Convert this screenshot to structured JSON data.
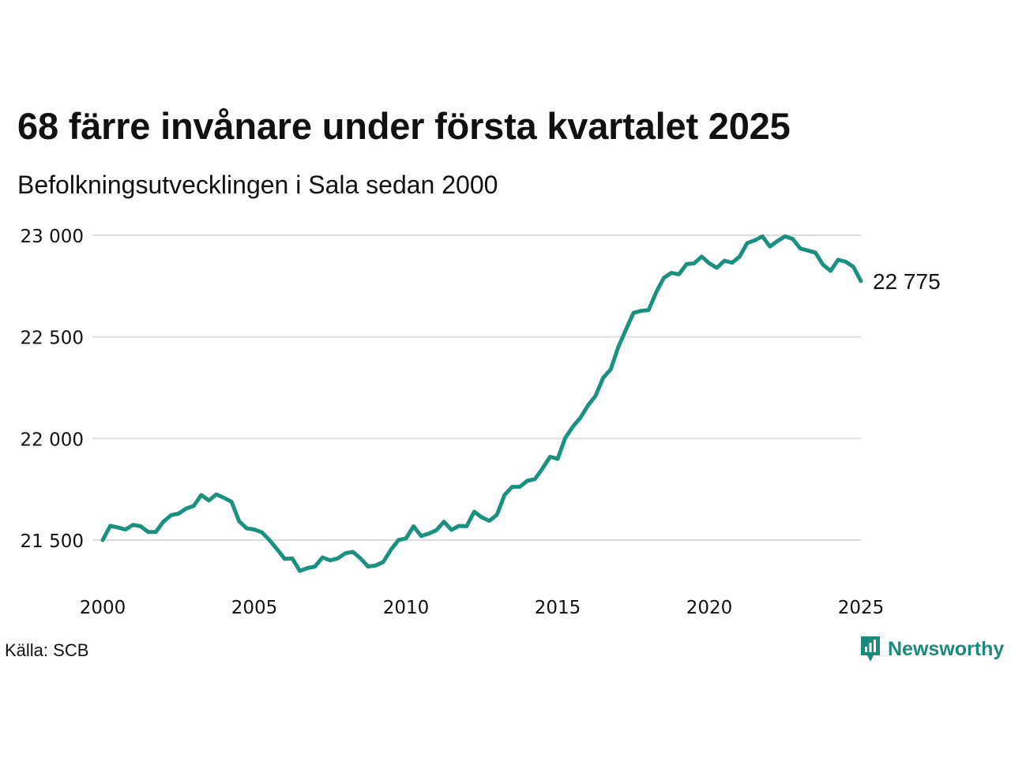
{
  "title": "68 färre invånare under första kvartalet 2025",
  "subtitle": "Befolkningsutvecklingen i Sala sedan 2000",
  "source": "Källa: SCB",
  "brand": {
    "name": "Newsworthy",
    "icon": "newsworthy-logo-icon",
    "color": "#1b8a7c"
  },
  "colors": {
    "line": "#1a9180",
    "grid": "#dddddd",
    "text": "#111111"
  },
  "chart_data": {
    "type": "line",
    "x_unit": "year",
    "xlim": [
      2000,
      2025
    ],
    "ylim": [
      21250,
      23060
    ],
    "xticks": [
      {
        "value": 2000,
        "label": "2000"
      },
      {
        "value": 2005,
        "label": "2005"
      },
      {
        "value": 2010,
        "label": "2010"
      },
      {
        "value": 2015,
        "label": "2015"
      },
      {
        "value": 2020,
        "label": "2020"
      },
      {
        "value": 2025,
        "label": "2025"
      }
    ],
    "yticks": [
      {
        "value": 21500,
        "label": "21 500"
      },
      {
        "value": 22000,
        "label": "22 000"
      },
      {
        "value": 22500,
        "label": "22 500"
      },
      {
        "value": 23000,
        "label": "23 000"
      }
    ],
    "grid": "horizontal",
    "end_label": "22 775",
    "series": [
      {
        "x": [
          2000.0,
          2000.25,
          2000.5,
          2000.75,
          2001.0,
          2001.25,
          2001.5,
          2001.75,
          2002.0,
          2002.25,
          2002.5,
          2002.75,
          2003.0,
          2003.25,
          2003.5,
          2003.75,
          2004.0,
          2004.25,
          2004.5,
          2004.75,
          2005.0,
          2005.25,
          2005.5,
          2005.75,
          2006.0,
          2006.25,
          2006.5,
          2006.75,
          2007.0,
          2007.25,
          2007.5,
          2007.75,
          2008.0,
          2008.25,
          2008.5,
          2008.75,
          2009.0,
          2009.25,
          2009.5,
          2009.75,
          2010.0,
          2010.25,
          2010.5,
          2010.75,
          2011.0,
          2011.25,
          2011.5,
          2011.75,
          2012.0,
          2012.25,
          2012.5,
          2012.75,
          2013.0,
          2013.25,
          2013.5,
          2013.75,
          2014.0,
          2014.25,
          2014.5,
          2014.75,
          2015.0,
          2015.25,
          2015.5,
          2015.75,
          2016.0,
          2016.25,
          2016.5,
          2016.75,
          2017.0,
          2017.25,
          2017.5,
          2017.75,
          2018.0,
          2018.25,
          2018.5,
          2018.75,
          2019.0,
          2019.25,
          2019.5,
          2019.75,
          2020.0,
          2020.25,
          2020.5,
          2020.75,
          2021.0,
          2021.25,
          2021.5,
          2021.75,
          2022.0,
          2022.25,
          2022.5,
          2022.75,
          2023.0,
          2023.25,
          2023.5,
          2023.75,
          2024.0,
          2024.25,
          2024.5,
          2024.75,
          2025.0
        ],
        "values": [
          21500,
          21570,
          21562,
          21552,
          21575,
          21568,
          21540,
          21540,
          21590,
          21622,
          21630,
          21655,
          21668,
          21722,
          21695,
          21725,
          21708,
          21688,
          21592,
          21558,
          21552,
          21538,
          21500,
          21455,
          21408,
          21410,
          21348,
          21362,
          21370,
          21415,
          21400,
          21410,
          21435,
          21442,
          21410,
          21370,
          21375,
          21392,
          21452,
          21500,
          21508,
          21568,
          21520,
          21532,
          21548,
          21590,
          21550,
          21570,
          21568,
          21640,
          21612,
          21595,
          21625,
          21722,
          21762,
          21762,
          21792,
          21800,
          21852,
          21910,
          21900,
          22002,
          22058,
          22102,
          22162,
          22210,
          22298,
          22340,
          22450,
          22535,
          22618,
          22628,
          22632,
          22720,
          22790,
          22815,
          22808,
          22858,
          22862,
          22895,
          22862,
          22840,
          22875,
          22865,
          22895,
          22962,
          22975,
          22995,
          22945,
          22972,
          22995,
          22982,
          22935,
          22925,
          22915,
          22855,
          22825,
          22880,
          22870,
          22845,
          22775
        ]
      }
    ]
  }
}
